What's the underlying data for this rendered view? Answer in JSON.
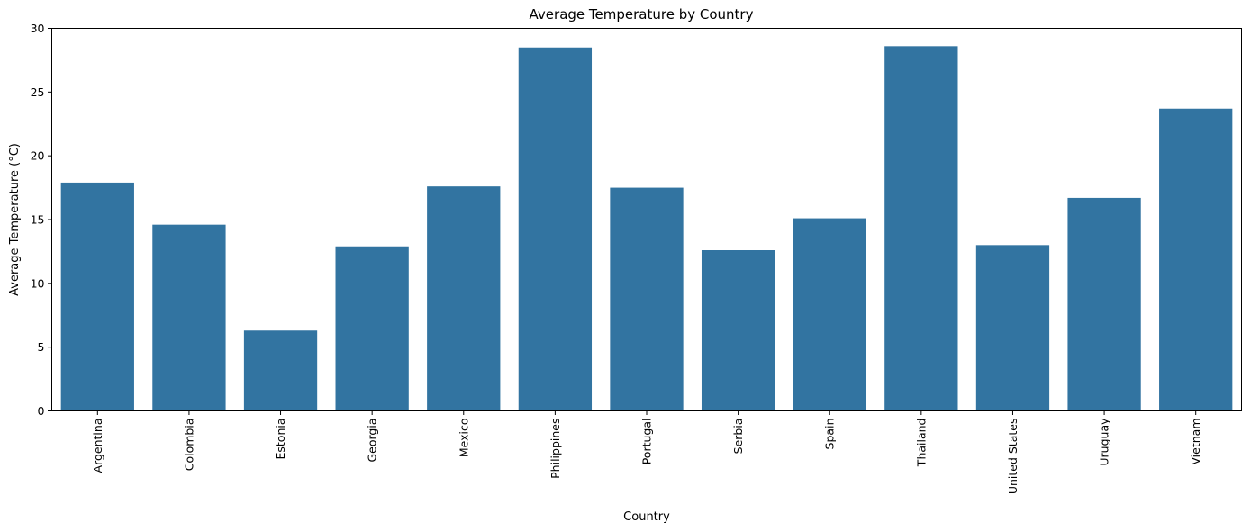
{
  "chart_data": {
    "type": "bar",
    "title": "Average Temperature by Country",
    "xlabel": "Country",
    "ylabel": "Average Temperature (°C)",
    "categories": [
      "Argentina",
      "Colombia",
      "Estonia",
      "Georgia",
      "Mexico",
      "Philippines",
      "Portugal",
      "Serbia",
      "Spain",
      "Thailand",
      "United States",
      "Uruguay",
      "Vietnam"
    ],
    "values": [
      17.9,
      14.6,
      6.3,
      12.9,
      17.6,
      28.5,
      17.5,
      12.6,
      15.1,
      28.6,
      13.0,
      16.7,
      23.7
    ],
    "ylim": [
      0,
      30
    ],
    "yticks": [
      0,
      5,
      10,
      15,
      20,
      25,
      30
    ],
    "grid": false,
    "bar_color": "#3274a1",
    "x_tick_rotation": "vertical"
  }
}
